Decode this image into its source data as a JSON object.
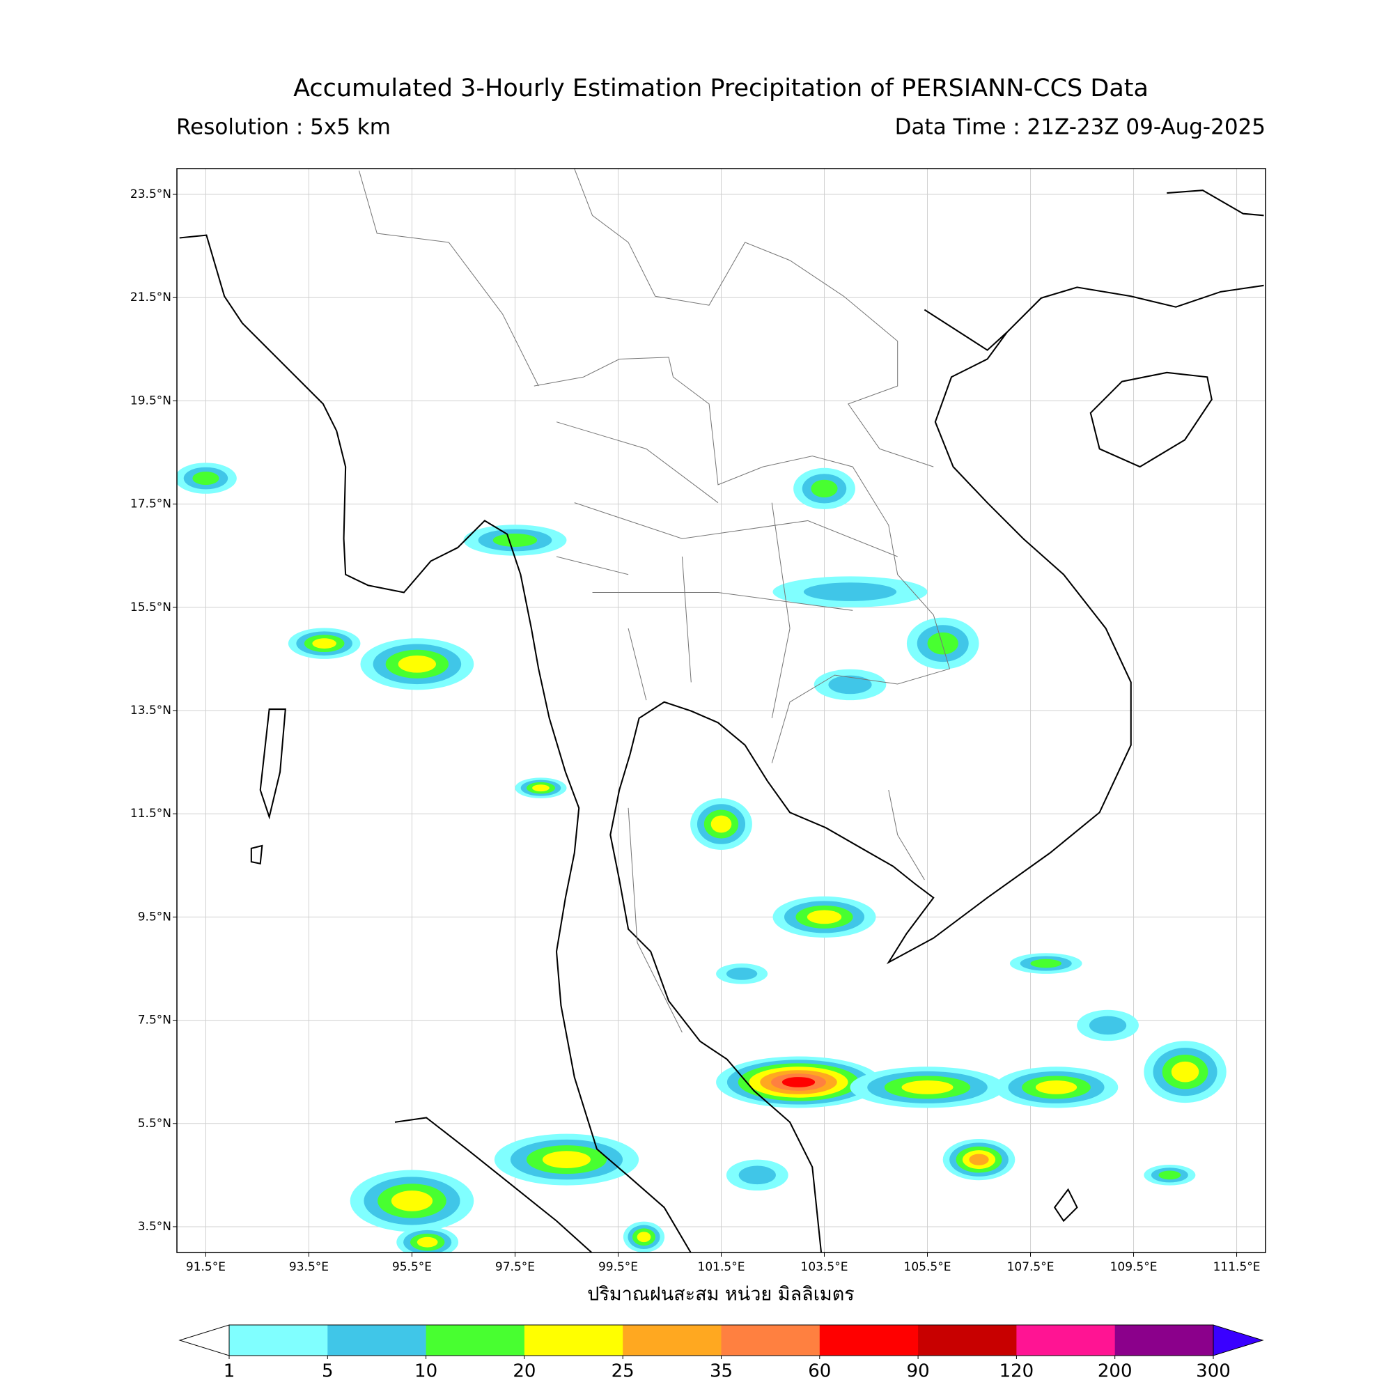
{
  "title": "Accumulated 3-Hourly Estimation Precipitation of PERSIANN-CCS Data",
  "resolution": "Resolution : 5x5 km",
  "data_time": "Data Time : 21Z-23Z 09-Aug-2025",
  "map": {
    "xlim": [
      90.94,
      112.06
    ],
    "ylim": [
      3.0,
      24.0
    ],
    "grid": true,
    "lon_ticks": [
      {
        "value": 91.5,
        "label": "91.5°E"
      },
      {
        "value": 93.5,
        "label": "93.5°E"
      },
      {
        "value": 95.5,
        "label": "95.5°E"
      },
      {
        "value": 97.5,
        "label": "97.5°E"
      },
      {
        "value": 99.5,
        "label": "99.5°E"
      },
      {
        "value": 101.5,
        "label": "101.5°E"
      },
      {
        "value": 103.5,
        "label": "103.5°E"
      },
      {
        "value": 105.5,
        "label": "105.5°E"
      },
      {
        "value": 107.5,
        "label": "107.5°E"
      },
      {
        "value": 109.5,
        "label": "109.5°E"
      },
      {
        "value": 111.5,
        "label": "111.5°E"
      }
    ],
    "lat_ticks": [
      {
        "value": 23.5,
        "label": "23.5°N"
      },
      {
        "value": 21.5,
        "label": "21.5°N"
      },
      {
        "value": 19.5,
        "label": "19.5°N"
      },
      {
        "value": 17.5,
        "label": "17.5°N"
      },
      {
        "value": 15.5,
        "label": "15.5°N"
      },
      {
        "value": 13.5,
        "label": "13.5°N"
      },
      {
        "value": 11.5,
        "label": "11.5°N"
      },
      {
        "value": 9.5,
        "label": "9.5°N"
      },
      {
        "value": 7.5,
        "label": "7.5°N"
      },
      {
        "value": 5.5,
        "label": "5.5°N"
      },
      {
        "value": 3.5,
        "label": "3.5°N"
      }
    ]
  },
  "xlabel": "ปริมาณฝนสะสม หน่วย มิลลิเมตร",
  "colorbar": {
    "levels": [
      1,
      5,
      10,
      20,
      25,
      35,
      60,
      90,
      120,
      200,
      300
    ],
    "under_color": "#ffffff",
    "colors": [
      "#80ffff",
      "#40c6e8",
      "#48ff30",
      "#ffff00",
      "#ffa820",
      "#ff8040",
      "#ff0000",
      "#c80000",
      "#ff1493",
      "#8b008b"
    ],
    "over_color": "#3a00ff"
  }
}
